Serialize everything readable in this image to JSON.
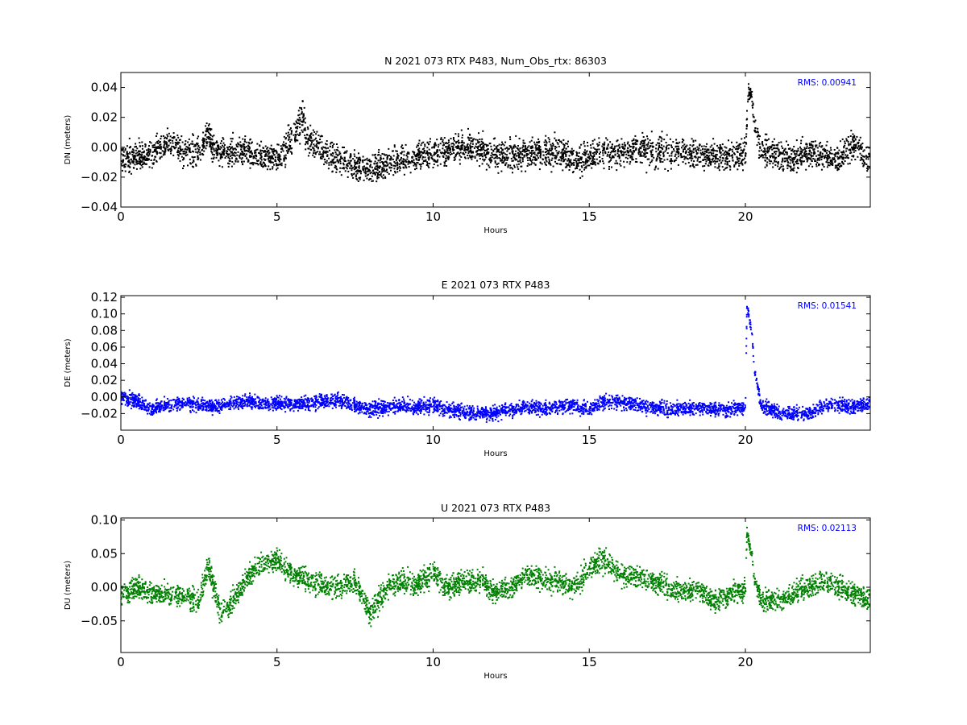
{
  "chart_data": [
    {
      "type": "scatter",
      "title": "N 2021 073 RTX  P483, Num_Obs_rtx: 86303",
      "xlabel": "Hours",
      "ylabel": "DN (meters)",
      "xlim": [
        0,
        24
      ],
      "ylim": [
        -0.04,
        0.05
      ],
      "x_ticks": [
        "0",
        "5",
        "10",
        "15",
        "20"
      ],
      "y_ticks": [
        "0.04",
        "0.02",
        "0.00",
        "−0.02",
        "−0.04"
      ],
      "y_tick_values": [
        0.04,
        0.02,
        0.0,
        -0.02,
        -0.04
      ],
      "annotation": "RMS:  0.00941",
      "color": "#000000",
      "series": [
        {
          "x": [
            0,
            0.5,
            1,
            1.5,
            2,
            2.5,
            2.8,
            3,
            3.5,
            4,
            4.5,
            5,
            5.5,
            5.8,
            6,
            6.5,
            7,
            7.5,
            8,
            8.5,
            9,
            9.5,
            10,
            10.5,
            11,
            11.5,
            12,
            12.5,
            13,
            13.5,
            14,
            14.5,
            15,
            15.5,
            16,
            16.5,
            17,
            17.5,
            18,
            18.5,
            19,
            19.5,
            20,
            20.1,
            20.2,
            20.3,
            20.5,
            21,
            21.5,
            22,
            22.5,
            23,
            23.5,
            24
          ],
          "y": [
            -0.008,
            -0.005,
            -0.006,
            0.004,
            -0.004,
            -0.002,
            0.008,
            -0.002,
            -0.004,
            -0.003,
            -0.006,
            -0.008,
            0.006,
            0.02,
            0.004,
            -0.004,
            -0.008,
            -0.012,
            -0.016,
            -0.012,
            -0.008,
            -0.006,
            -0.004,
            -0.002,
            0.001,
            -0.002,
            -0.006,
            -0.005,
            -0.004,
            -0.004,
            -0.002,
            -0.01,
            -0.006,
            -0.004,
            -0.003,
            -0.001,
            -0.002,
            -0.004,
            -0.003,
            -0.004,
            -0.005,
            -0.006,
            -0.005,
            0.038,
            0.035,
            0.015,
            -0.002,
            -0.004,
            -0.008,
            -0.004,
            -0.005,
            -0.008,
            0.002,
            -0.01
          ],
          "spread": [
            0.02,
            0.02,
            0.02,
            0.02,
            0.02,
            0.02,
            0.02,
            0.02,
            0.02,
            0.02,
            0.02,
            0.02,
            0.026,
            0.026,
            0.022,
            0.02,
            0.02,
            0.02,
            0.02,
            0.02,
            0.02,
            0.02,
            0.02,
            0.02,
            0.02,
            0.02,
            0.02,
            0.02,
            0.02,
            0.02,
            0.022,
            0.02,
            0.02,
            0.02,
            0.02,
            0.022,
            0.024,
            0.022,
            0.02,
            0.02,
            0.02,
            0.02,
            0.02,
            0.012,
            0.012,
            0.012,
            0.02,
            0.02,
            0.02,
            0.02,
            0.02,
            0.02,
            0.02,
            0.02
          ]
        }
      ]
    },
    {
      "type": "scatter",
      "title": "E 2021 073 RTX  P483",
      "xlabel": "Hours",
      "ylabel": "DE (meters)",
      "xlim": [
        0,
        24
      ],
      "ylim": [
        -0.04,
        0.122
      ],
      "x_ticks": [
        "0",
        "5",
        "10",
        "15",
        "20"
      ],
      "y_ticks": [
        "0.12",
        "0.10",
        "0.08",
        "0.06",
        "0.04",
        "0.02",
        "0.00",
        "−0.02"
      ],
      "y_tick_values": [
        0.12,
        0.1,
        0.08,
        0.06,
        0.04,
        0.02,
        0.0,
        -0.02
      ],
      "annotation": "RMS:  0.01541",
      "color": "#0000ff",
      "series": [
        {
          "x": [
            0,
            0.5,
            1,
            1.5,
            2,
            2.5,
            3,
            3.5,
            4,
            4.5,
            5,
            5.5,
            6,
            6.5,
            7,
            7.5,
            8,
            8.5,
            9,
            9.5,
            10,
            10.5,
            11,
            11.5,
            12,
            12.5,
            13,
            13.5,
            14,
            14.5,
            15,
            15.5,
            16,
            16.5,
            17,
            17.5,
            18,
            18.5,
            19,
            19.5,
            20,
            20.05,
            20.2,
            20.3,
            20.5,
            21,
            21.5,
            22,
            22.5,
            23,
            23.5,
            24
          ],
          "y": [
            0.0,
            -0.005,
            -0.015,
            -0.01,
            -0.008,
            -0.01,
            -0.012,
            -0.008,
            -0.006,
            -0.008,
            -0.008,
            -0.008,
            -0.008,
            -0.006,
            -0.004,
            -0.01,
            -0.015,
            -0.012,
            -0.01,
            -0.012,
            -0.01,
            -0.015,
            -0.018,
            -0.02,
            -0.02,
            -0.015,
            -0.012,
            -0.015,
            -0.012,
            -0.01,
            -0.015,
            -0.005,
            -0.005,
            -0.01,
            -0.012,
            -0.015,
            -0.015,
            -0.012,
            -0.014,
            -0.016,
            -0.012,
            0.11,
            0.08,
            0.03,
            -0.01,
            -0.018,
            -0.02,
            -0.02,
            -0.01,
            -0.01,
            -0.012,
            -0.008
          ],
          "spread": [
            0.018,
            0.018,
            0.018,
            0.018,
            0.018,
            0.018,
            0.018,
            0.018,
            0.018,
            0.018,
            0.018,
            0.018,
            0.018,
            0.018,
            0.018,
            0.018,
            0.018,
            0.018,
            0.018,
            0.018,
            0.018,
            0.018,
            0.018,
            0.018,
            0.018,
            0.018,
            0.018,
            0.018,
            0.018,
            0.018,
            0.018,
            0.018,
            0.018,
            0.018,
            0.018,
            0.018,
            0.018,
            0.018,
            0.018,
            0.018,
            0.018,
            0.012,
            0.012,
            0.012,
            0.018,
            0.018,
            0.018,
            0.018,
            0.018,
            0.018,
            0.018,
            0.018
          ]
        }
      ]
    },
    {
      "type": "scatter",
      "title": "U 2021 073 RTX  P483",
      "xlabel": "Hours",
      "ylabel": "DU (meters)",
      "xlim": [
        0,
        24
      ],
      "ylim": [
        -0.097,
        0.103
      ],
      "x_ticks": [
        "0",
        "5",
        "10",
        "15",
        "20"
      ],
      "y_ticks": [
        "0.10",
        "0.05",
        "0.00",
        "−0.05"
      ],
      "y_tick_values": [
        0.1,
        0.05,
        0.0,
        -0.05
      ],
      "annotation": "RMS:  0.02113",
      "color": "#008000",
      "series": [
        {
          "x": [
            0,
            0.5,
            1,
            1.5,
            2,
            2.5,
            2.8,
            3.2,
            3.6,
            4,
            4.5,
            5,
            5.5,
            6,
            6.5,
            7,
            7.5,
            8,
            8.5,
            9,
            9.5,
            10,
            10.5,
            11,
            11.5,
            12,
            12.5,
            13,
            13.5,
            14,
            14.5,
            15,
            15.5,
            16,
            16.5,
            17,
            17.5,
            18,
            18.5,
            19,
            19.5,
            20,
            20.05,
            20.2,
            20.3,
            20.5,
            21,
            21.5,
            22,
            22.5,
            23,
            23.5,
            24
          ],
          "y": [
            -0.01,
            0.0,
            -0.01,
            -0.01,
            -0.015,
            -0.02,
            0.03,
            -0.04,
            -0.02,
            0.01,
            0.035,
            0.04,
            0.02,
            0.01,
            0.0,
            0.0,
            0.01,
            -0.04,
            0.0,
            0.01,
            0.005,
            0.02,
            0.0,
            0.01,
            0.01,
            -0.01,
            0.0,
            0.02,
            0.01,
            0.01,
            0.0,
            0.03,
            0.04,
            0.02,
            0.015,
            0.01,
            0.0,
            -0.01,
            0.0,
            -0.02,
            -0.01,
            -0.005,
            0.08,
            0.05,
            0.01,
            -0.02,
            -0.02,
            -0.01,
            0.0,
            0.01,
            0.0,
            -0.01,
            -0.02
          ],
          "spread": [
            0.035,
            0.035,
            0.035,
            0.035,
            0.035,
            0.035,
            0.04,
            0.04,
            0.035,
            0.035,
            0.035,
            0.035,
            0.035,
            0.035,
            0.035,
            0.035,
            0.035,
            0.035,
            0.035,
            0.035,
            0.035,
            0.035,
            0.035,
            0.035,
            0.035,
            0.035,
            0.035,
            0.035,
            0.035,
            0.035,
            0.035,
            0.04,
            0.04,
            0.035,
            0.035,
            0.035,
            0.035,
            0.035,
            0.035,
            0.035,
            0.035,
            0.035,
            0.02,
            0.02,
            0.02,
            0.035,
            0.035,
            0.035,
            0.035,
            0.035,
            0.035,
            0.035,
            0.035
          ]
        }
      ]
    }
  ]
}
